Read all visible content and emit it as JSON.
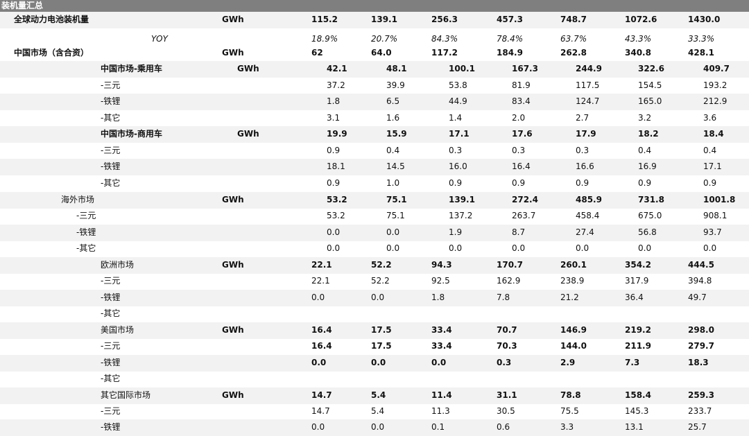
{
  "sheet": {
    "title": "装机量汇总",
    "rows": [
      {
        "label": "全球动力电池装机量",
        "unit": "GWh",
        "values": [
          "115.2",
          "139.1",
          "256.3",
          "457.3",
          "748.7",
          "1072.6",
          "1430.0"
        ]
      },
      {
        "label": "YOY",
        "unit": "",
        "values": [
          "18.9%",
          "20.7%",
          "84.3%",
          "78.4%",
          "63.7%",
          "43.3%",
          "33.3%"
        ]
      },
      {
        "label": "中国市场（含合资）",
        "unit": "GWh",
        "values": [
          "62",
          "64.0",
          "117.2",
          "184.9",
          "262.8",
          "340.8",
          "428.1"
        ]
      },
      {
        "label": "中国市场-乘用车",
        "unit": "GWh",
        "values": [
          "42.1",
          "48.1",
          "100.1",
          "167.3",
          "244.9",
          "322.6",
          "409.7"
        ]
      },
      {
        "label": "-三元",
        "unit": "",
        "values": [
          "37.2",
          "39.9",
          "53.8",
          "81.9",
          "117.5",
          "154.5",
          "193.2"
        ]
      },
      {
        "label": "-铁锂",
        "unit": "",
        "values": [
          "1.8",
          "6.5",
          "44.9",
          "83.4",
          "124.7",
          "165.0",
          "212.9"
        ]
      },
      {
        "label": "-其它",
        "unit": "",
        "values": [
          "3.1",
          "1.6",
          "1.4",
          "2.0",
          "2.7",
          "3.2",
          "3.6"
        ]
      },
      {
        "label": "中国市场-商用车",
        "unit": "GWh",
        "values": [
          "19.9",
          "15.9",
          "17.1",
          "17.6",
          "17.9",
          "18.2",
          "18.4"
        ]
      },
      {
        "label": "-三元",
        "unit": "",
        "values": [
          "0.9",
          "0.4",
          "0.3",
          "0.3",
          "0.3",
          "0.4",
          "0.4"
        ]
      },
      {
        "label": "-铁锂",
        "unit": "",
        "values": [
          "18.1",
          "14.5",
          "16.0",
          "16.4",
          "16.6",
          "16.9",
          "17.1"
        ]
      },
      {
        "label": "-其它",
        "unit": "",
        "values": [
          "0.9",
          "1.0",
          "0.9",
          "0.9",
          "0.9",
          "0.9",
          "0.9"
        ]
      },
      {
        "label": "海外市场",
        "unit": "GWh",
        "values": [
          "53.2",
          "75.1",
          "139.1",
          "272.4",
          "485.9",
          "731.8",
          "1001.8"
        ]
      },
      {
        "label": "-三元",
        "unit": "",
        "values": [
          "53.2",
          "75.1",
          "137.2",
          "263.7",
          "458.4",
          "675.0",
          "908.1"
        ]
      },
      {
        "label": "-铁锂",
        "unit": "",
        "values": [
          "0.0",
          "0.0",
          "1.9",
          "8.7",
          "27.4",
          "56.8",
          "93.7"
        ]
      },
      {
        "label": "-其它",
        "unit": "",
        "values": [
          "0.0",
          "0.0",
          "0.0",
          "0.0",
          "0.0",
          "0.0",
          "0.0"
        ]
      },
      {
        "label": "欧洲市场",
        "unit": "GWh",
        "values": [
          "22.1",
          "52.2",
          "94.3",
          "170.7",
          "260.1",
          "354.2",
          "444.5"
        ]
      },
      {
        "label": "-三元",
        "unit": "",
        "values": [
          "22.1",
          "52.2",
          "92.5",
          "162.9",
          "238.9",
          "317.9",
          "394.8"
        ]
      },
      {
        "label": "-铁锂",
        "unit": "",
        "values": [
          "0.0",
          "0.0",
          "1.8",
          "7.8",
          "21.2",
          "36.4",
          "49.7"
        ]
      },
      {
        "label": "-其它",
        "unit": "",
        "values": []
      },
      {
        "label": "美国市场",
        "unit": "GWh",
        "values": [
          "16.4",
          "17.5",
          "33.4",
          "70.7",
          "146.9",
          "219.2",
          "298.0"
        ]
      },
      {
        "label": "-三元",
        "unit": "",
        "values": [
          "16.4",
          "17.5",
          "33.4",
          "70.3",
          "144.0",
          "211.9",
          "279.7"
        ]
      },
      {
        "label": "-铁锂",
        "unit": "",
        "values": [
          "0.0",
          "0.0",
          "0.0",
          "0.3",
          "2.9",
          "7.3",
          "18.3"
        ]
      },
      {
        "label": "-其它",
        "unit": "",
        "values": []
      },
      {
        "label": "其它国际市场",
        "unit": "GWh",
        "values": [
          "14.7",
          "5.4",
          "11.4",
          "31.1",
          "78.8",
          "158.4",
          "259.3"
        ]
      },
      {
        "label": "-三元",
        "unit": "",
        "values": [
          "14.7",
          "5.4",
          "11.3",
          "30.5",
          "75.5",
          "145.3",
          "233.7"
        ]
      },
      {
        "label": "-铁锂",
        "unit": "",
        "values": [
          "0.0",
          "0.0",
          "0.1",
          "0.6",
          "3.3",
          "13.1",
          "25.7"
        ]
      }
    ]
  }
}
